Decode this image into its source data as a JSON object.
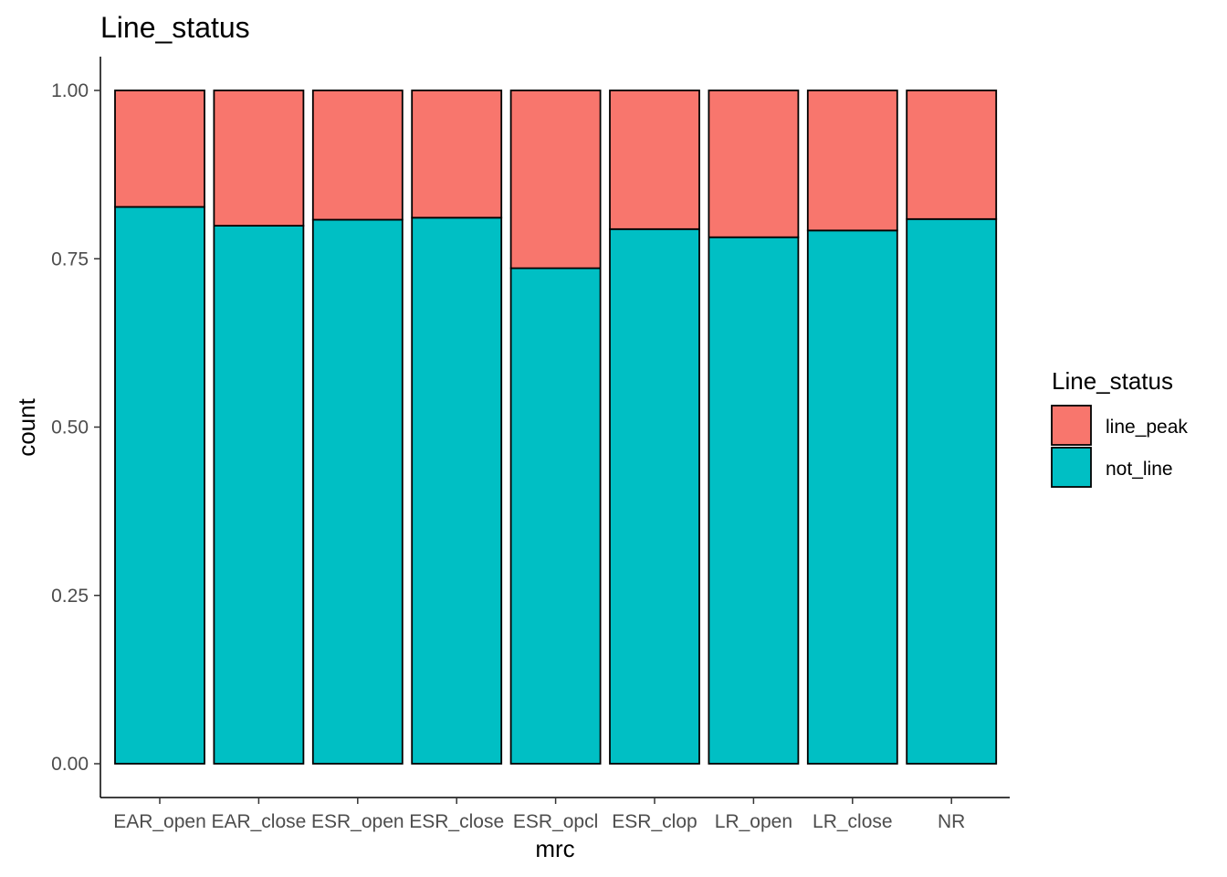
{
  "chart_data": {
    "type": "bar",
    "stacked": true,
    "title": "Line_status",
    "xlabel": "mrc",
    "ylabel": "count",
    "categories": [
      "EAR_open",
      "EAR_close",
      "ESR_open",
      "ESR_close",
      "ESR_opcl",
      "ESR_clop",
      "LR_open",
      "LR_close",
      "NR"
    ],
    "series": [
      {
        "name": "not_line",
        "color": "#00BFC4",
        "values": [
          0.827,
          0.799,
          0.808,
          0.811,
          0.736,
          0.794,
          0.782,
          0.792,
          0.809
        ]
      },
      {
        "name": "line_peak",
        "color": "#F8766D",
        "values": [
          0.173,
          0.201,
          0.192,
          0.189,
          0.264,
          0.206,
          0.218,
          0.208,
          0.191
        ]
      }
    ],
    "stack_order_bottom_to_top": [
      "not_line",
      "line_peak"
    ],
    "ylim": [
      0,
      1
    ],
    "yticks": [
      "0.00",
      "0.25",
      "0.50",
      "0.75",
      "1.00"
    ],
    "legend": {
      "title": "Line_status",
      "entries": [
        "line_peak",
        "not_line"
      ],
      "position": "right"
    },
    "grid": false
  }
}
